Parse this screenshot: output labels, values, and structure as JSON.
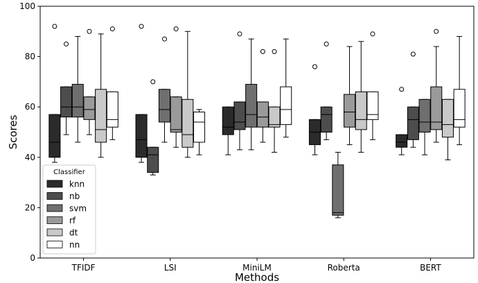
{
  "chart_data": {
    "type": "boxplot",
    "xlabel": "Methods",
    "ylabel": "Scores",
    "ylim": [
      0,
      100
    ],
    "yticks": [
      0,
      20,
      40,
      60,
      80,
      100
    ],
    "categories": [
      "TFIDF",
      "LSI",
      "MiniLM",
      "Roberta",
      "BERT"
    ],
    "legend": {
      "title": "Classifier",
      "placement": "lower-left"
    },
    "series": [
      {
        "name": "knn",
        "color": "#2b2b2b",
        "boxes": [
          {
            "min": 38,
            "q1": 40,
            "median": 46,
            "q3": 57,
            "max": 57,
            "outliers": [
              92
            ]
          },
          {
            "min": 38,
            "q1": 40,
            "median": 47,
            "q3": 57,
            "max": 57,
            "outliers": [
              92
            ]
          },
          {
            "min": 41,
            "q1": 49,
            "median": 52,
            "q3": 60,
            "max": 60,
            "outliers": []
          },
          {
            "min": 41,
            "q1": 45,
            "median": 50,
            "q3": 55,
            "max": 55,
            "outliers": [
              76
            ]
          },
          {
            "min": 41,
            "q1": 44,
            "median": 46,
            "q3": 49,
            "max": 49,
            "outliers": [
              67
            ]
          }
        ]
      },
      {
        "name": "nb",
        "color": "#4d4d4d",
        "boxes": [
          {
            "min": 49,
            "q1": 56,
            "median": 60,
            "q3": 68,
            "max": 68,
            "outliers": [
              85
            ]
          },
          {
            "min": 33,
            "q1": 34,
            "median": 41,
            "q3": 44,
            "max": 44,
            "outliers": [
              70
            ]
          },
          {
            "min": 43,
            "q1": 51,
            "median": 54,
            "q3": 62,
            "max": 62,
            "outliers": [
              89
            ]
          },
          {
            "min": 47,
            "q1": 50,
            "median": 57,
            "q3": 60,
            "max": 60,
            "outliers": [
              85
            ]
          },
          {
            "min": 44,
            "q1": 47,
            "median": 55,
            "q3": 60,
            "max": 60,
            "outliers": [
              81
            ]
          }
        ]
      },
      {
        "name": "svm",
        "color": "#6f6f6f",
        "boxes": [
          {
            "min": 46,
            "q1": 56,
            "median": 60,
            "q3": 69,
            "max": 88,
            "outliers": []
          },
          {
            "min": 46,
            "q1": 54,
            "median": 59,
            "q3": 67,
            "max": 67,
            "outliers": [
              87
            ]
          },
          {
            "min": 43,
            "q1": 52,
            "median": 57,
            "q3": 69,
            "max": 87,
            "outliers": []
          },
          {
            "min": 16,
            "q1": 17,
            "median": 18,
            "q3": 37,
            "max": 42,
            "outliers": []
          },
          {
            "min": 41,
            "q1": 50,
            "median": 54,
            "q3": 63,
            "max": 63,
            "outliers": []
          }
        ]
      },
      {
        "name": "rf",
        "color": "#9a9a9a",
        "boxes": [
          {
            "min": 49,
            "q1": 55,
            "median": 59,
            "q3": 64,
            "max": 64,
            "outliers": [
              90
            ]
          },
          {
            "min": 44,
            "q1": 50,
            "median": 51,
            "q3": 64,
            "max": 64,
            "outliers": [
              91
            ]
          },
          {
            "min": 46,
            "q1": 52,
            "median": 56,
            "q3": 62,
            "max": 62,
            "outliers": [
              82
            ]
          },
          {
            "min": 45,
            "q1": 52,
            "median": 58,
            "q3": 65,
            "max": 84,
            "outliers": []
          },
          {
            "min": 46,
            "q1": 51,
            "median": 54,
            "q3": 68,
            "max": 84,
            "outliers": [
              90
            ]
          }
        ]
      },
      {
        "name": "dt",
        "color": "#c9c9c9",
        "boxes": [
          {
            "min": 40,
            "q1": 46,
            "median": 51,
            "q3": 67,
            "max": 89,
            "outliers": []
          },
          {
            "min": 40,
            "q1": 44,
            "median": 49,
            "q3": 63,
            "max": 90,
            "outliers": []
          },
          {
            "min": 42,
            "q1": 52,
            "median": 53,
            "q3": 60,
            "max": 60,
            "outliers": [
              82
            ]
          },
          {
            "min": 42,
            "q1": 51,
            "median": 55,
            "q3": 66,
            "max": 86,
            "outliers": []
          },
          {
            "min": 39,
            "q1": 48,
            "median": 53,
            "q3": 63,
            "max": 63,
            "outliers": []
          }
        ]
      },
      {
        "name": "nn",
        "color": "#ffffff",
        "boxes": [
          {
            "min": 47,
            "q1": 52,
            "median": 55,
            "q3": 66,
            "max": 66,
            "outliers": [
              91
            ]
          },
          {
            "min": 41,
            "q1": 46,
            "median": 54,
            "q3": 58,
            "max": 59,
            "outliers": []
          },
          {
            "min": 48,
            "q1": 53,
            "median": 59,
            "q3": 68,
            "max": 87,
            "outliers": []
          },
          {
            "min": 47,
            "q1": 55,
            "median": 57,
            "q3": 66,
            "max": 66,
            "outliers": [
              89
            ]
          },
          {
            "min": 45,
            "q1": 52,
            "median": 55,
            "q3": 67,
            "max": 88,
            "outliers": []
          }
        ]
      }
    ]
  }
}
